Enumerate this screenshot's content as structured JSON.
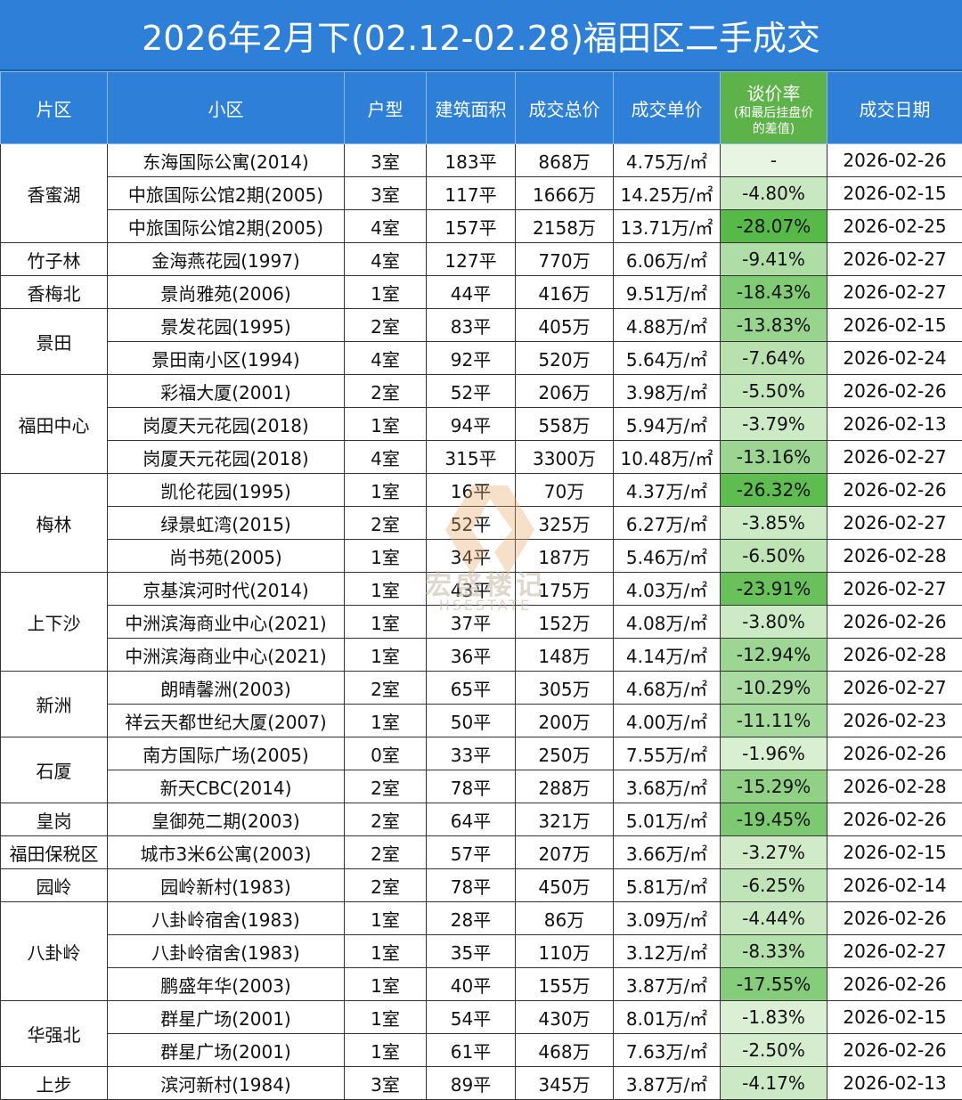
{
  "title": "2026年2月下(02.12-02.28)福田区二手成交",
  "headers": {
    "area": "片区",
    "community": "小区",
    "layout": "户型",
    "size": "建筑面积",
    "total": "成交总价",
    "unit_price": "成交单价",
    "discount": "谈价率",
    "discount_note_1": "(和最后挂盘价",
    "discount_note_2": "的差值)",
    "date": "成交日期"
  },
  "watermark": {
    "brand": "宏盛楼记",
    "brand_en": "HSESTATE"
  },
  "colors": {
    "header_blue": "#2d7fd8",
    "discount_header_green": "#5db24a",
    "discount_strong": "#5cbc4c",
    "discount_light": "#e6f3e0"
  },
  "rows": [
    {
      "community": "东海国际公寓(2014)",
      "layout": "3室",
      "size": "183平",
      "total": "868万",
      "unit": "4.75万/㎡",
      "discount": "-",
      "date": "2026-02-26",
      "discount_value": 0
    },
    {
      "community": "中旅国际公馆2期(2005)",
      "layout": "3室",
      "size": "117平",
      "total": "1666万",
      "unit": "14.25万/㎡",
      "discount": "-4.80%",
      "date": "2026-02-15",
      "discount_value": 4.8
    },
    {
      "community": "中旅国际公馆2期(2005)",
      "layout": "4室",
      "size": "157平",
      "total": "2158万",
      "unit": "13.71万/㎡",
      "discount": "-28.07%",
      "date": "2026-02-25",
      "discount_value": 28.07
    },
    {
      "community": "金海燕花园(1997)",
      "layout": "4室",
      "size": "127平",
      "total": "770万",
      "unit": "6.06万/㎡",
      "discount": "-9.41%",
      "date": "2026-02-27",
      "discount_value": 9.41
    },
    {
      "community": "景尚雅苑(2006)",
      "layout": "1室",
      "size": "44平",
      "total": "416万",
      "unit": "9.51万/㎡",
      "discount": "-18.43%",
      "date": "2026-02-27",
      "discount_value": 18.43
    },
    {
      "community": "景发花园(1995)",
      "layout": "2室",
      "size": "83平",
      "total": "405万",
      "unit": "4.88万/㎡",
      "discount": "-13.83%",
      "date": "2026-02-15",
      "discount_value": 13.83
    },
    {
      "community": "景田南小区(1994)",
      "layout": "4室",
      "size": "92平",
      "total": "520万",
      "unit": "5.64万/㎡",
      "discount": "-7.64%",
      "date": "2026-02-24",
      "discount_value": 7.64
    },
    {
      "community": "彩福大厦(2001)",
      "layout": "2室",
      "size": "52平",
      "total": "206万",
      "unit": "3.98万/㎡",
      "discount": "-5.50%",
      "date": "2026-02-26",
      "discount_value": 5.5
    },
    {
      "community": "岗厦天元花园(2018)",
      "layout": "1室",
      "size": "94平",
      "total": "558万",
      "unit": "5.94万/㎡",
      "discount": "-3.79%",
      "date": "2026-02-13",
      "discount_value": 3.79
    },
    {
      "community": "岗厦天元花园(2018)",
      "layout": "4室",
      "size": "315平",
      "total": "3300万",
      "unit": "10.48万/㎡",
      "discount": "-13.16%",
      "date": "2026-02-27",
      "discount_value": 13.16
    },
    {
      "community": "凯伦花园(1995)",
      "layout": "1室",
      "size": "16平",
      "total": "70万",
      "unit": "4.37万/㎡",
      "discount": "-26.32%",
      "date": "2026-02-26",
      "discount_value": 26.32
    },
    {
      "community": "绿景虹湾(2015)",
      "layout": "2室",
      "size": "52平",
      "total": "325万",
      "unit": "6.27万/㎡",
      "discount": "-3.85%",
      "date": "2026-02-27",
      "discount_value": 3.85
    },
    {
      "community": "尚书苑(2005)",
      "layout": "1室",
      "size": "34平",
      "total": "187万",
      "unit": "5.46万/㎡",
      "discount": "-6.50%",
      "date": "2026-02-28",
      "discount_value": 6.5
    },
    {
      "community": "京基滨河时代(2014)",
      "layout": "1室",
      "size": "43平",
      "total": "175万",
      "unit": "4.03万/㎡",
      "discount": "-23.91%",
      "date": "2026-02-27",
      "discount_value": 23.91
    },
    {
      "community": "中洲滨海商业中心(2021)",
      "layout": "1室",
      "size": "37平",
      "total": "152万",
      "unit": "4.08万/㎡",
      "discount": "-3.80%",
      "date": "2026-02-26",
      "discount_value": 3.8
    },
    {
      "community": "中洲滨海商业中心(2021)",
      "layout": "1室",
      "size": "36平",
      "total": "148万",
      "unit": "4.14万/㎡",
      "discount": "-12.94%",
      "date": "2026-02-28",
      "discount_value": 12.94
    },
    {
      "community": "朗晴馨洲(2003)",
      "layout": "2室",
      "size": "65平",
      "total": "305万",
      "unit": "4.68万/㎡",
      "discount": "-10.29%",
      "date": "2026-02-27",
      "discount_value": 10.29
    },
    {
      "community": "祥云天都世纪大厦(2007)",
      "layout": "1室",
      "size": "50平",
      "total": "200万",
      "unit": "4.00万/㎡",
      "discount": "-11.11%",
      "date": "2026-02-23",
      "discount_value": 11.11
    },
    {
      "community": "南方国际广场(2005)",
      "layout": "0室",
      "size": "33平",
      "total": "250万",
      "unit": "7.55万/㎡",
      "discount": "-1.96%",
      "date": "2026-02-26",
      "discount_value": 1.96
    },
    {
      "community": "新天CBC(2014)",
      "layout": "2室",
      "size": "78平",
      "total": "288万",
      "unit": "3.68万/㎡",
      "discount": "-15.29%",
      "date": "2026-02-28",
      "discount_value": 15.29
    },
    {
      "community": "皇御苑二期(2003)",
      "layout": "2室",
      "size": "64平",
      "total": "321万",
      "unit": "5.01万/㎡",
      "discount": "-19.45%",
      "date": "2026-02-26",
      "discount_value": 19.45
    },
    {
      "community": "城市3米6公寓(2003)",
      "layout": "2室",
      "size": "57平",
      "total": "207万",
      "unit": "3.66万/㎡",
      "discount": "-3.27%",
      "date": "2026-02-15",
      "discount_value": 3.27
    },
    {
      "community": "园岭新村(1983)",
      "layout": "2室",
      "size": "78平",
      "total": "450万",
      "unit": "5.81万/㎡",
      "discount": "-6.25%",
      "date": "2026-02-14",
      "discount_value": 6.25
    },
    {
      "community": "八卦岭宿舍(1983)",
      "layout": "1室",
      "size": "28平",
      "total": "86万",
      "unit": "3.09万/㎡",
      "discount": "-4.44%",
      "date": "2026-02-26",
      "discount_value": 4.44
    },
    {
      "community": "八卦岭宿舍(1983)",
      "layout": "1室",
      "size": "35平",
      "total": "110万",
      "unit": "3.12万/㎡",
      "discount": "-8.33%",
      "date": "2026-02-27",
      "discount_value": 8.33
    },
    {
      "community": "鹏盛年华(2003)",
      "layout": "1室",
      "size": "40平",
      "total": "155万",
      "unit": "3.87万/㎡",
      "discount": "-17.55%",
      "date": "2026-02-26",
      "discount_value": 17.55
    },
    {
      "community": "群星广场(2001)",
      "layout": "1室",
      "size": "54平",
      "total": "430万",
      "unit": "8.01万/㎡",
      "discount": "-1.83%",
      "date": "2026-02-15",
      "discount_value": 1.83
    },
    {
      "community": "群星广场(2001)",
      "layout": "1室",
      "size": "61平",
      "total": "468万",
      "unit": "7.63万/㎡",
      "discount": "-2.50%",
      "date": "2026-02-26",
      "discount_value": 2.5
    },
    {
      "community": "滨河新村(1984)",
      "layout": "3室",
      "size": "89平",
      "total": "345万",
      "unit": "3.87万/㎡",
      "discount": "-4.17%",
      "date": "2026-02-13",
      "discount_value": 4.17
    }
  ],
  "areas": [
    {
      "name": "香蜜湖",
      "rows": 3
    },
    {
      "name": "竹子林",
      "rows": 1
    },
    {
      "name": "香梅北",
      "rows": 1
    },
    {
      "name": "景田",
      "rows": 2
    },
    {
      "name": "福田中心",
      "rows": 3
    },
    {
      "name": "梅林",
      "rows": 3
    },
    {
      "name": "上下沙",
      "rows": 3
    },
    {
      "name": "新洲",
      "rows": 2
    },
    {
      "name": "石厦",
      "rows": 2
    },
    {
      "name": "皇岗",
      "rows": 1
    },
    {
      "name": "福田保税区",
      "rows": 1
    },
    {
      "name": "园岭",
      "rows": 1
    },
    {
      "name": "八卦岭",
      "rows": 3
    },
    {
      "name": "华强北",
      "rows": 2
    },
    {
      "name": "上步",
      "rows": 1
    }
  ]
}
